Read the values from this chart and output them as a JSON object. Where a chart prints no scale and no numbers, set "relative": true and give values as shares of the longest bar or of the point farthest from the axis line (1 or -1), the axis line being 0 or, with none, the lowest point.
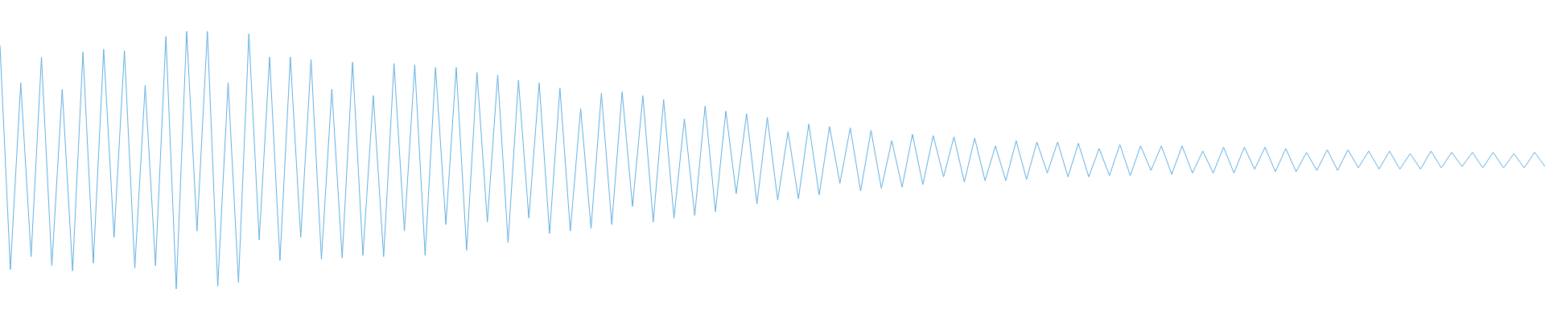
{
  "chart_data": {
    "type": "line",
    "relative": true,
    "color": "#5faee3",
    "marker": "none",
    "line_style": "solid",
    "grid": false,
    "legend": false,
    "categories": [
      null,
      null,
      null,
      null,
      null,
      null,
      null,
      null,
      null,
      null,
      null,
      null,
      null,
      null,
      null,
      null,
      null,
      null,
      null,
      null,
      null,
      null,
      null,
      null,
      null,
      null,
      null,
      null,
      null,
      null,
      null,
      null,
      null,
      null,
      null,
      null,
      null,
      null,
      null,
      null,
      null,
      null,
      null,
      null,
      null,
      null,
      null,
      null,
      null,
      null,
      null,
      null,
      null,
      null,
      null,
      null,
      null,
      null,
      null,
      null,
      null,
      null,
      null,
      null,
      null,
      null,
      null,
      null,
      null,
      null,
      null,
      null,
      null,
      null,
      null,
      null,
      null,
      null,
      null,
      null,
      null,
      null,
      null,
      null,
      null,
      null,
      null,
      null,
      null,
      null,
      null,
      null,
      null,
      null,
      null,
      null,
      null,
      null,
      null,
      null,
      null,
      null,
      null,
      null,
      null,
      null,
      null,
      null,
      null,
      null,
      null,
      null,
      null,
      null,
      null,
      null,
      null,
      null,
      null,
      null,
      null,
      null,
      null,
      null,
      null,
      null,
      null,
      null,
      null,
      null,
      null,
      null,
      null,
      null,
      null,
      null,
      null,
      null,
      null,
      null,
      null,
      null,
      null,
      null,
      null,
      null,
      null,
      null,
      null,
      null
    ],
    "values": [
      0.945,
      0.075,
      0.8,
      0.125,
      0.9,
      0.09,
      0.775,
      0.07,
      0.92,
      0.1,
      0.93,
      0.2,
      0.925,
      0.08,
      0.79,
      0.09,
      0.98,
      0,
      1,
      0.225,
      1,
      0.01,
      0.8,
      0.025,
      0.99,
      0.19,
      0.9,
      0.11,
      0.9,
      0.2,
      0.89,
      0.115,
      0.775,
      0.12,
      0.88,
      0.13,
      0.75,
      0.125,
      0.875,
      0.225,
      0.87,
      0.13,
      0.86,
      0.25,
      0.86,
      0.15,
      0.84,
      0.26,
      0.83,
      0.18,
      0.81,
      0.275,
      0.8,
      0.215,
      0.78,
      0.225,
      0.7,
      0.235,
      0.76,
      0.25,
      0.765,
      0.32,
      0.75,
      0.26,
      0.735,
      0.275,
      0.66,
      0.285,
      0.71,
      0.3,
      0.69,
      0.37,
      0.68,
      0.33,
      0.665,
      0.345,
      0.61,
      0.35,
      0.64,
      0.365,
      0.63,
      0.41,
      0.625,
      0.38,
      0.615,
      0.39,
      0.575,
      0.395,
      0.6,
      0.405,
      0.595,
      0.435,
      0.59,
      0.415,
      0.585,
      0.42,
      0.555,
      0.42,
      0.575,
      0.425,
      0.57,
      0.45,
      0.57,
      0.435,
      0.565,
      0.435,
      0.545,
      0.44,
      0.56,
      0.44,
      0.555,
      0.46,
      0.555,
      0.445,
      0.555,
      0.45,
      0.535,
      0.45,
      0.55,
      0.45,
      0.55,
      0.465,
      0.55,
      0.455,
      0.545,
      0.455,
      0.53,
      0.46,
      0.54,
      0.46,
      0.54,
      0.47,
      0.535,
      0.465,
      0.535,
      0.465,
      0.525,
      0.465,
      0.535,
      0.47,
      0.53,
      0.475,
      0.53,
      0.47,
      0.53,
      0.47,
      0.525,
      0.47,
      0.53,
      0.475
    ]
  }
}
